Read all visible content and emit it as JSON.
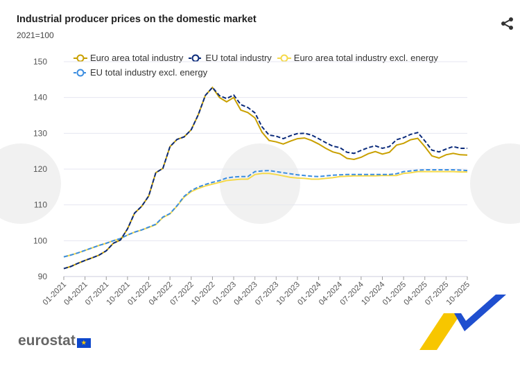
{
  "header": {
    "title": "Industrial producer prices on the domestic market",
    "subtitle": "2021=100",
    "share_icon": "share-icon"
  },
  "footer": {
    "logo_text": "eurostat"
  },
  "chart_data": {
    "type": "line",
    "title": "Industrial producer prices on the domestic market",
    "ylabel": "2021=100",
    "ylim": [
      90,
      150
    ],
    "yticks": [
      90,
      100,
      110,
      120,
      130,
      140,
      150
    ],
    "grid": true,
    "legend": "top",
    "x": [
      "01-2021",
      "02-2021",
      "03-2021",
      "04-2021",
      "05-2021",
      "06-2021",
      "07-2021",
      "08-2021",
      "09-2021",
      "10-2021",
      "11-2021",
      "12-2021",
      "01-2022",
      "02-2022",
      "03-2022",
      "04-2022",
      "05-2022",
      "06-2022",
      "07-2022",
      "08-2022",
      "09-2022",
      "10-2022",
      "11-2022",
      "12-2022",
      "01-2023",
      "02-2023",
      "03-2023",
      "04-2023",
      "05-2023",
      "06-2023",
      "07-2023",
      "08-2023",
      "09-2023",
      "10-2023",
      "11-2023",
      "12-2023",
      "01-2024",
      "02-2024",
      "03-2024",
      "04-2024",
      "05-2024",
      "06-2024",
      "07-2024",
      "08-2024",
      "09-2024",
      "10-2024",
      "11-2024",
      "12-2024",
      "01-2025",
      "02-2025",
      "03-2025",
      "04-2025",
      "05-2025",
      "06-2025",
      "07-2025",
      "08-2025",
      "09-2025",
      "10-2025"
    ],
    "xticks": [
      "01-2021",
      "04-2021",
      "07-2021",
      "10-2021",
      "01-2022",
      "04-2022",
      "07-2022",
      "10-2022",
      "01-2023",
      "04-2023",
      "07-2023",
      "10-2023",
      "01-2024",
      "04-2024",
      "07-2024",
      "10-2024",
      "01-2025",
      "04-2025",
      "07-2025",
      "10-2025"
    ],
    "series": [
      {
        "name": "Euro area total industry",
        "color": "#c9a000",
        "dash": false,
        "values": [
          92.2,
          92.8,
          93.7,
          94.5,
          95.2,
          96.0,
          97.2,
          99.3,
          100.2,
          103.3,
          107.7,
          109.6,
          112.5,
          119.0,
          120.2,
          126.3,
          128.3,
          129.0,
          131.0,
          135.2,
          140.6,
          142.8,
          140.0,
          138.8,
          140.0,
          136.5,
          135.8,
          134.3,
          130.3,
          128.0,
          127.6,
          127.0,
          127.8,
          128.5,
          128.7,
          128.0,
          127.0,
          125.8,
          124.8,
          124.3,
          123.0,
          122.7,
          123.3,
          124.3,
          124.9,
          124.2,
          124.7,
          126.7,
          127.2,
          128.2,
          128.6,
          126.3,
          123.7,
          123.1,
          124.0,
          124.4,
          124.0,
          123.9
        ]
      },
      {
        "name": "EU total industry",
        "color": "#0a2a7a",
        "dash": true,
        "values": [
          92.2,
          92.8,
          93.7,
          94.5,
          95.2,
          96.0,
          97.2,
          99.3,
          100.2,
          103.3,
          107.7,
          109.6,
          112.5,
          119.0,
          120.2,
          126.3,
          128.3,
          129.0,
          131.0,
          135.2,
          140.6,
          142.8,
          140.5,
          139.7,
          140.7,
          138.0,
          137.2,
          135.7,
          131.8,
          129.5,
          129.2,
          128.5,
          129.3,
          129.9,
          130.0,
          129.5,
          128.5,
          127.4,
          126.4,
          126.0,
          124.7,
          124.4,
          125.2,
          126.0,
          126.5,
          125.8,
          126.3,
          128.2,
          128.8,
          129.7,
          130.2,
          127.9,
          125.3,
          124.8,
          125.6,
          126.3,
          125.8,
          125.8
        ]
      },
      {
        "name": "Euro area total industry excl. energy",
        "color": "#f5d94a",
        "dash": false,
        "values": [
          95.5,
          96.0,
          96.6,
          97.3,
          98.0,
          98.7,
          99.3,
          100.0,
          100.6,
          101.6,
          102.4,
          103.0,
          103.7,
          104.5,
          106.5,
          107.5,
          109.7,
          112.2,
          113.7,
          114.6,
          115.3,
          115.8,
          116.3,
          116.8,
          117.0,
          117.2,
          117.2,
          118.5,
          118.8,
          118.8,
          118.5,
          118.1,
          117.7,
          117.5,
          117.4,
          117.2,
          117.2,
          117.4,
          117.6,
          117.9,
          118.0,
          118.1,
          118.1,
          118.1,
          118.1,
          118.2,
          118.2,
          118.2,
          118.8,
          119.0,
          119.3,
          119.3,
          119.3,
          119.3,
          119.3,
          119.3,
          119.2,
          119.2
        ]
      },
      {
        "name": "EU total industry excl. energy",
        "color": "#3b8de0",
        "dash": true,
        "values": [
          95.5,
          96.0,
          96.6,
          97.3,
          98.0,
          98.7,
          99.3,
          100.0,
          100.6,
          101.6,
          102.4,
          103.0,
          103.8,
          104.6,
          106.6,
          107.6,
          109.8,
          112.4,
          114.0,
          115.0,
          115.7,
          116.3,
          116.8,
          117.5,
          117.8,
          117.9,
          117.9,
          119.3,
          119.5,
          119.6,
          119.3,
          119.0,
          118.7,
          118.4,
          118.2,
          118.0,
          117.9,
          118.1,
          118.3,
          118.4,
          118.5,
          118.5,
          118.5,
          118.5,
          118.5,
          118.5,
          118.5,
          118.7,
          119.3,
          119.5,
          119.7,
          119.8,
          119.8,
          119.8,
          119.8,
          119.8,
          119.7,
          119.6
        ]
      }
    ]
  }
}
